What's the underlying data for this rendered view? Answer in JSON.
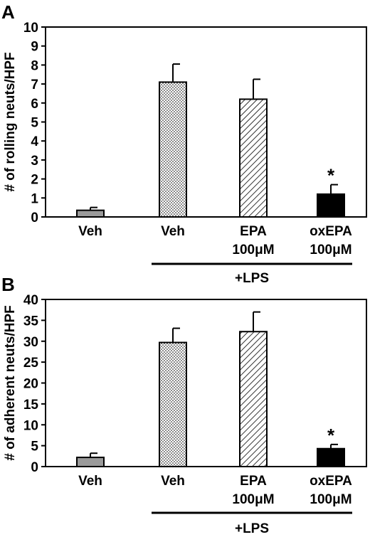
{
  "chart_data": [
    {
      "type": "bar",
      "panel": "A",
      "ylabel": "# of rolling neuts/HPF",
      "ylim": [
        0,
        10
      ],
      "yticks": [
        0,
        1,
        2,
        3,
        4,
        5,
        6,
        7,
        8,
        9,
        10
      ],
      "categories": [
        {
          "line1": "Veh",
          "line2": ""
        },
        {
          "line1": "Veh",
          "line2": ""
        },
        {
          "line1": "EPA",
          "line2": "100μM"
        },
        {
          "line1": "oxEPA",
          "line2": "100μM"
        }
      ],
      "values": [
        0.35,
        7.1,
        6.2,
        1.2
      ],
      "errors": [
        0.15,
        0.95,
        1.05,
        0.5
      ],
      "fills": [
        "gray",
        "dots",
        "hatch",
        "black"
      ],
      "significance": [
        "",
        "",
        "",
        "*"
      ],
      "group_label": "+LPS",
      "group_span": [
        1,
        3
      ]
    },
    {
      "type": "bar",
      "panel": "B",
      "ylabel": "# of adherent neuts/HPF",
      "ylim": [
        0,
        40
      ],
      "yticks": [
        0,
        5,
        10,
        15,
        20,
        25,
        30,
        35,
        40
      ],
      "categories": [
        {
          "line1": "Veh",
          "line2": ""
        },
        {
          "line1": "Veh",
          "line2": ""
        },
        {
          "line1": "EPA",
          "line2": "100μM"
        },
        {
          "line1": "oxEPA",
          "line2": "100μM"
        }
      ],
      "values": [
        2.2,
        29.7,
        32.3,
        4.3
      ],
      "errors": [
        1.0,
        3.4,
        4.7,
        1.0
      ],
      "fills": [
        "gray",
        "dots",
        "hatch",
        "black"
      ],
      "significance": [
        "",
        "",
        "",
        "*"
      ],
      "group_label": "+LPS",
      "group_span": [
        1,
        3
      ]
    }
  ]
}
